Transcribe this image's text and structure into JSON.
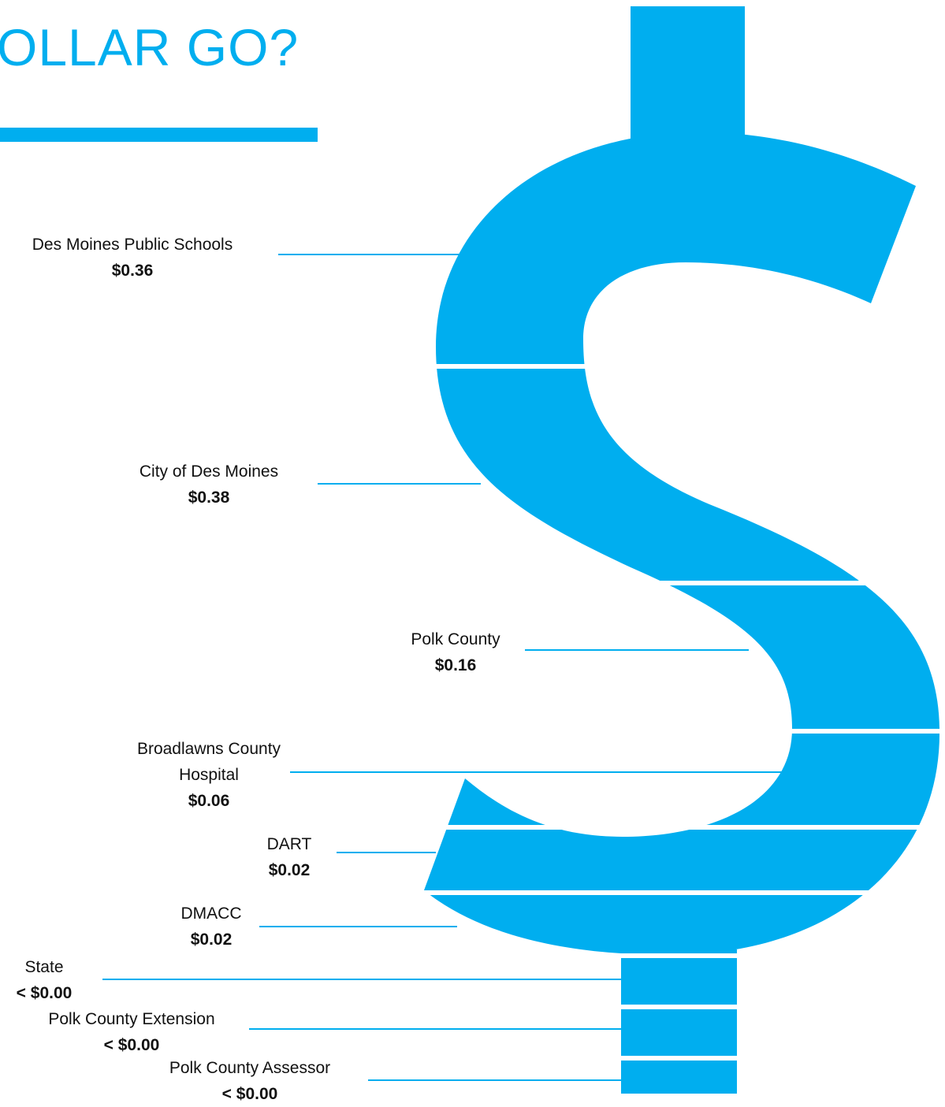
{
  "title": "OLLAR GO?",
  "items": [
    {
      "name": "Des Moines Public Schools",
      "value": "$0.36"
    },
    {
      "name": "City of Des Moines",
      "value": "$0.38"
    },
    {
      "name": "Polk County",
      "value": "$0.16"
    },
    {
      "name": "Broadlawns County Hospital",
      "value": "$0.06"
    },
    {
      "name": "DART",
      "value": "$0.02"
    },
    {
      "name": "DMACC",
      "value": "$0.02"
    },
    {
      "name": "State",
      "value": "< $0.00"
    },
    {
      "name": "Polk County Extension",
      "value": "< $0.00"
    },
    {
      "name": "Polk County Assessor",
      "value": "< $0.00"
    }
  ]
}
